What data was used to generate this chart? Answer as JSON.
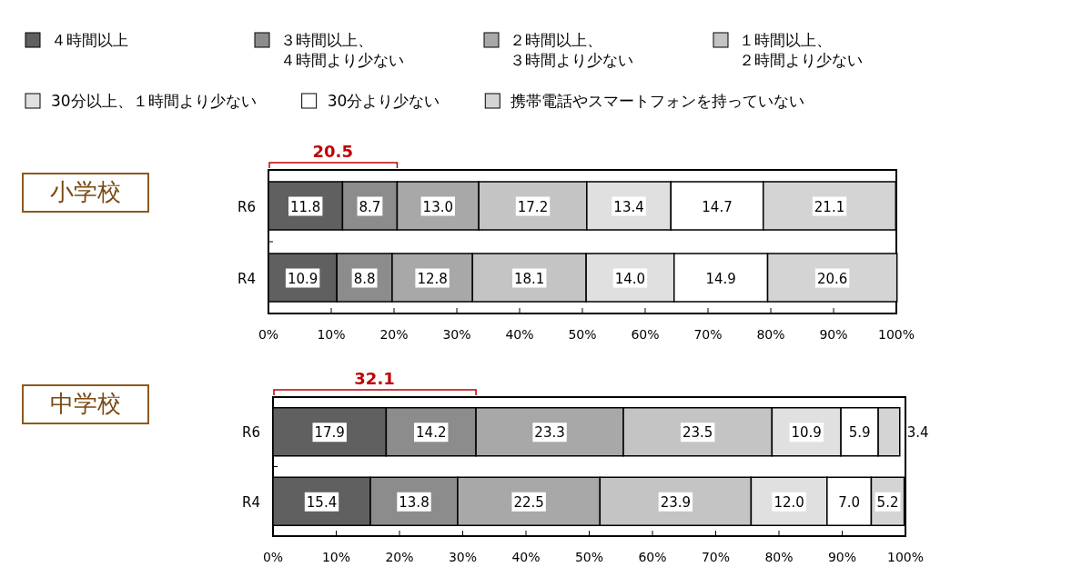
{
  "chart_data": [
    {
      "type": "bar",
      "title": "小学校",
      "orientation": "horizontal",
      "stacked": true,
      "legend": "top",
      "categories": [
        "R6",
        "R4"
      ],
      "xlim": [
        0,
        100
      ],
      "xticks": [
        {
          "value": 0,
          "label": "0%"
        },
        {
          "value": 10,
          "label": "10%"
        },
        {
          "value": 20,
          "label": "20%"
        },
        {
          "value": 30,
          "label": "30%"
        },
        {
          "value": 40,
          "label": "40%"
        },
        {
          "value": 50,
          "label": "50%"
        },
        {
          "value": 60,
          "label": "60%"
        },
        {
          "value": 70,
          "label": "70%"
        },
        {
          "value": 80,
          "label": "80%"
        },
        {
          "value": 90,
          "label": "90%"
        },
        {
          "value": 100,
          "label": "100%"
        }
      ],
      "annotations": [
        "20.5"
      ],
      "series": [
        {
          "name": "４時間以上",
          "color": "#606060",
          "values": [
            11.8,
            10.9
          ],
          "value_labels": [
            "11.8",
            "10.9"
          ]
        },
        {
          "name": "３時間以上、４時間より少ない",
          "color": "#8c8c8c",
          "values": [
            8.7,
            8.8
          ],
          "value_labels": [
            "8.7",
            "8.8"
          ]
        },
        {
          "name": "２時間以上、３時間より少ない",
          "color": "#a8a8a8",
          "values": [
            13.0,
            12.8
          ],
          "value_labels": [
            "13.0",
            "12.8"
          ]
        },
        {
          "name": "１時間以上、２時間より少ない",
          "color": "#c4c4c4",
          "values": [
            17.2,
            18.1
          ],
          "value_labels": [
            "17.2",
            "18.1"
          ]
        },
        {
          "name": "30分以上、１時間より少ない",
          "color": "#e0e0e0",
          "values": [
            13.4,
            14.0
          ],
          "value_labels": [
            "13.4",
            "14.0"
          ]
        },
        {
          "name": "30分より少ない",
          "color": "#ffffff",
          "values": [
            14.7,
            14.9
          ],
          "value_labels": [
            "14.7",
            "14.9"
          ]
        },
        {
          "name": "携帯電話やスマートフォンを持っていない",
          "color": "#d4d4d4",
          "values": [
            21.1,
            20.6
          ],
          "value_labels": [
            "21.1",
            "20.6"
          ]
        }
      ]
    },
    {
      "type": "bar",
      "title": "中学校",
      "orientation": "horizontal",
      "stacked": true,
      "categories": [
        "R6",
        "R4"
      ],
      "xlim": [
        0,
        100
      ],
      "xticks": [
        {
          "value": 0,
          "label": "0%"
        },
        {
          "value": 10,
          "label": "10%"
        },
        {
          "value": 20,
          "label": "20%"
        },
        {
          "value": 30,
          "label": "30%"
        },
        {
          "value": 40,
          "label": "40%"
        },
        {
          "value": 50,
          "label": "50%"
        },
        {
          "value": 60,
          "label": "60%"
        },
        {
          "value": 70,
          "label": "70%"
        },
        {
          "value": 80,
          "label": "80%"
        },
        {
          "value": 90,
          "label": "90%"
        },
        {
          "value": 100,
          "label": "100%"
        }
      ],
      "annotations": [
        "32.1"
      ],
      "series": [
        {
          "color": "#606060",
          "values": [
            17.9,
            15.4
          ],
          "value_labels": [
            "17.9",
            "15.4"
          ]
        },
        {
          "color": "#8c8c8c",
          "values": [
            14.2,
            13.8
          ],
          "value_labels": [
            "14.2",
            "13.8"
          ]
        },
        {
          "color": "#a8a8a8",
          "values": [
            23.3,
            22.5
          ],
          "value_labels": [
            "23.3",
            "22.5"
          ]
        },
        {
          "color": "#c4c4c4",
          "values": [
            23.5,
            23.9
          ],
          "value_labels": [
            "23.5",
            "23.9"
          ]
        },
        {
          "color": "#e0e0e0",
          "values": [
            10.9,
            12.0
          ],
          "value_labels": [
            "10.9",
            "12.0"
          ]
        },
        {
          "color": "#ffffff",
          "values": [
            5.9,
            7.0
          ],
          "value_labels": [
            "5.9",
            "7.0"
          ]
        },
        {
          "color": "#d4d4d4",
          "values": [
            3.4,
            5.2
          ],
          "value_labels": [
            "3.4",
            "5.2"
          ]
        }
      ]
    }
  ]
}
